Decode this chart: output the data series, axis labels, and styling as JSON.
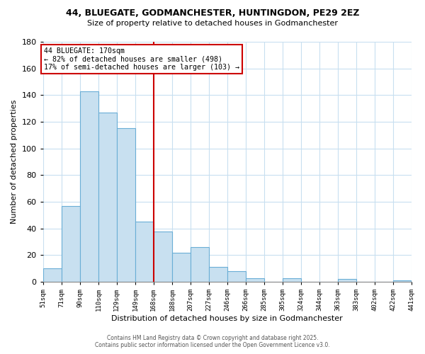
{
  "title": "44, BLUEGATE, GODMANCHESTER, HUNTINGDON, PE29 2EZ",
  "subtitle": "Size of property relative to detached houses in Godmanchester",
  "xlabel": "Distribution of detached houses by size in Godmanchester",
  "ylabel": "Number of detached properties",
  "bar_color": "#c8e0f0",
  "bar_edge_color": "#6aaed6",
  "background_color": "#ffffff",
  "grid_color": "#c8dff0",
  "bins": [
    51,
    71,
    90,
    110,
    129,
    149,
    168,
    188,
    207,
    227,
    246,
    266,
    285,
    305,
    324,
    344,
    363,
    383,
    402,
    422,
    441
  ],
  "bin_labels": [
    "51sqm",
    "71sqm",
    "90sqm",
    "110sqm",
    "129sqm",
    "149sqm",
    "168sqm",
    "188sqm",
    "207sqm",
    "227sqm",
    "246sqm",
    "266sqm",
    "285sqm",
    "305sqm",
    "324sqm",
    "344sqm",
    "363sqm",
    "383sqm",
    "402sqm",
    "422sqm",
    "441sqm"
  ],
  "values": [
    10,
    57,
    143,
    127,
    115,
    45,
    38,
    22,
    26,
    11,
    8,
    3,
    0,
    3,
    0,
    0,
    2,
    0,
    0,
    1
  ],
  "ann_line1": "44 BLUEGATE: 170sqm",
  "ann_line2": "← 82% of detached houses are smaller (498)",
  "ann_line3": "17% of semi-detached houses are larger (103) →",
  "ylim": [
    0,
    180
  ],
  "yticks": [
    0,
    20,
    40,
    60,
    80,
    100,
    120,
    140,
    160,
    180
  ],
  "vline_x": 168,
  "footer1": "Contains HM Land Registry data © Crown copyright and database right 2025.",
  "footer2": "Contains public sector information licensed under the Open Government Licence v3.0."
}
